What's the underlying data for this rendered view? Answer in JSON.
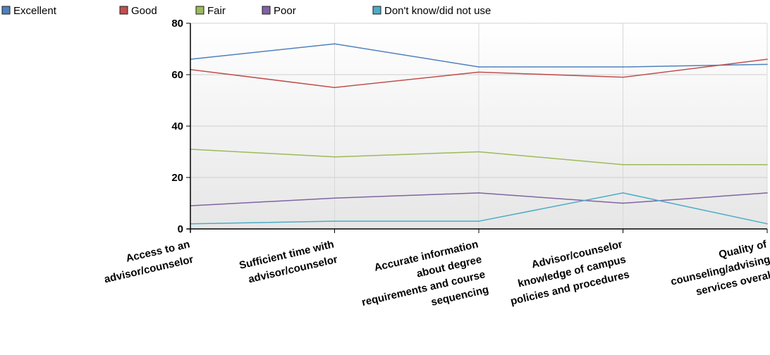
{
  "chart_data": {
    "type": "line",
    "title": "",
    "xlabel": "",
    "ylabel": "",
    "ylim": [
      0,
      80
    ],
    "yticks": [
      0,
      20,
      40,
      60,
      80
    ],
    "grid": true,
    "legend_position": "top-left",
    "categories": [
      [
        "Access to an",
        "advisor/counselor"
      ],
      [
        "Sufficient time with",
        "advisor/counselor"
      ],
      [
        "Accurate information",
        "about degree",
        "requirements and course",
        "sequencing"
      ],
      [
        "Advisor/counselor",
        "knowledge of campus",
        "policies and procedures"
      ],
      [
        "Quality of",
        "counseling/advising",
        "services overall"
      ]
    ],
    "series": [
      {
        "name": "Excellent",
        "color": "#4f81bd",
        "values": [
          66,
          72,
          63,
          63,
          64
        ]
      },
      {
        "name": "Good",
        "color": "#c0504d",
        "values": [
          62,
          55,
          61,
          59,
          66
        ]
      },
      {
        "name": "Fair",
        "color": "#9bbb59",
        "values": [
          31,
          28,
          30,
          25,
          25
        ]
      },
      {
        "name": "Poor",
        "color": "#8064a2",
        "values": [
          9,
          12,
          14,
          10,
          14
        ]
      },
      {
        "name": "Don't know/did not use",
        "color": "#4bacc6",
        "values": [
          2,
          3,
          3,
          14,
          2
        ]
      }
    ]
  }
}
